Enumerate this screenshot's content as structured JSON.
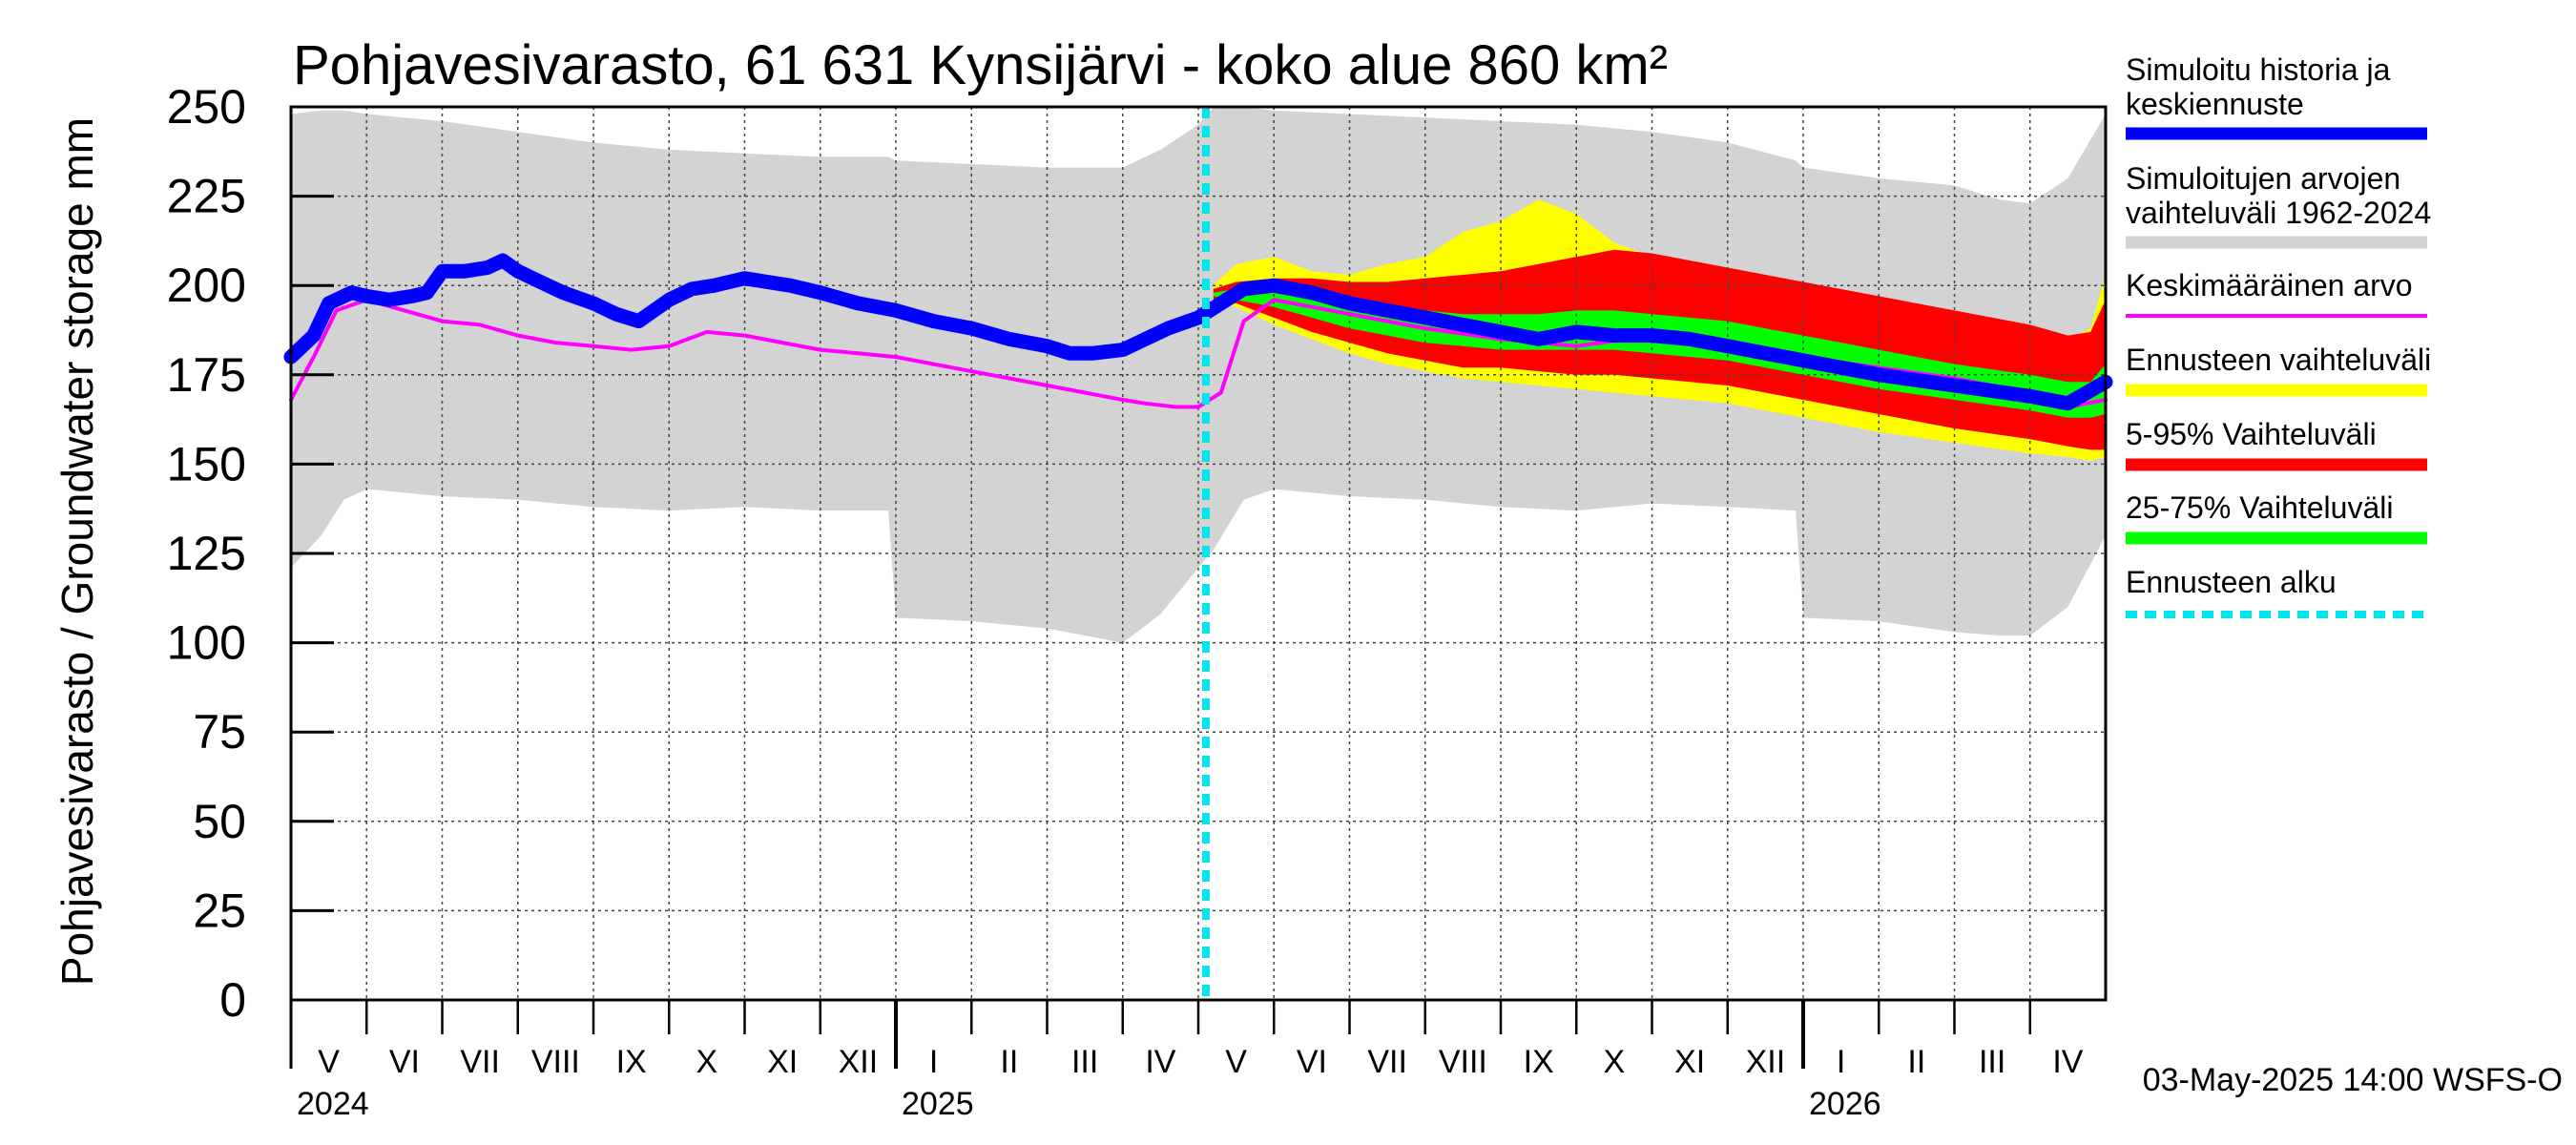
{
  "chart_data": {
    "type": "line",
    "title": "Pohjavesivarasto, 61 631 Kynsijärvi - koko alue 860 km²",
    "ylabel": "Pohjavesivarasto / Groundwater storage   mm",
    "xlabel": "",
    "ylim": [
      0,
      250
    ],
    "yticks": [
      0,
      25,
      50,
      75,
      100,
      125,
      150,
      175,
      200,
      225,
      250
    ],
    "x_unit": "month index (0 = start of May 2024)",
    "xlim": [
      0,
      24
    ],
    "months": [
      "V",
      "VI",
      "VII",
      "VIII",
      "IX",
      "X",
      "XI",
      "XII",
      "I",
      "II",
      "III",
      "IV",
      "V",
      "VI",
      "VII",
      "VIII",
      "IX",
      "X",
      "XI",
      "XII",
      "I",
      "II",
      "III",
      "IV"
    ],
    "years": [
      {
        "label": "2024",
        "month_index": 0
      },
      {
        "label": "2025",
        "month_index": 8
      },
      {
        "label": "2026",
        "month_index": 20
      }
    ],
    "forecast_start": 12.1,
    "series": [
      {
        "name": "Simuloitujen arvojen vaihteluväli 1962-2024",
        "color": "#d3d3d3",
        "type": "band",
        "x": [
          0,
          0.4,
          0.7,
          1,
          2,
          3,
          4,
          5,
          6,
          7,
          7.9,
          8.0,
          9,
          10,
          11,
          11.5,
          12.0,
          12.2,
          12.6,
          13,
          14,
          15,
          16,
          17,
          18,
          19,
          19.9,
          20.0,
          21,
          22,
          22.6,
          23,
          23.5,
          24
        ],
        "upper": [
          248,
          249,
          249,
          248,
          246,
          243,
          240,
          238,
          237,
          236,
          236,
          235,
          234,
          233,
          233,
          238,
          245,
          250,
          250,
          249,
          248,
          247,
          246,
          245,
          243,
          240,
          235,
          233,
          230,
          228,
          224,
          223,
          230,
          248
        ],
        "lower": [
          121,
          130,
          140,
          143,
          141,
          140,
          138,
          137,
          138,
          137,
          137,
          107,
          106,
          104,
          100,
          108,
          121,
          126,
          140,
          143,
          141,
          140,
          138,
          137,
          139,
          138,
          137,
          107,
          106,
          103,
          102,
          102,
          110,
          130
        ]
      },
      {
        "name": "Ennusteen vaihteluväli",
        "color": "#ffff00",
        "type": "band",
        "x": [
          12.2,
          12.5,
          13,
          13.5,
          14,
          14.5,
          15,
          15.5,
          16,
          16.5,
          17,
          17.5,
          18,
          18.5,
          19,
          20,
          21,
          22,
          23,
          23.5,
          23.8,
          24
        ],
        "upper": [
          200,
          206,
          208,
          204,
          203,
          206,
          208,
          215,
          218,
          224,
          220,
          212,
          208,
          206,
          204,
          200,
          196,
          191,
          187,
          185,
          188,
          203
        ],
        "lower": [
          196,
          194,
          189,
          185,
          181,
          178,
          176,
          174,
          173,
          172,
          171,
          170,
          169,
          168,
          167,
          163,
          159,
          156,
          153,
          152,
          151,
          152
        ]
      },
      {
        "name": "5-95% Vaihteluväli",
        "color": "#ff0000",
        "type": "band",
        "x": [
          12.2,
          12.5,
          13,
          13.5,
          14,
          14.5,
          15,
          15.5,
          16,
          16.5,
          17,
          17.5,
          18,
          18.5,
          19,
          20,
          21,
          22,
          23,
          23.5,
          23.8,
          24
        ],
        "upper": [
          199,
          201,
          202,
          202,
          201,
          201,
          202,
          203,
          204,
          206,
          208,
          210,
          209,
          207,
          205,
          201,
          197,
          193,
          189,
          186,
          187,
          196
        ],
        "lower": [
          196,
          195,
          191,
          187,
          184,
          181,
          179,
          177,
          177,
          176,
          175,
          175,
          174,
          173,
          172,
          168,
          164,
          160,
          157,
          155,
          154,
          154
        ]
      },
      {
        "name": "25-75% Vaihteluväli",
        "color": "#00ff00",
        "type": "band",
        "x": [
          12.2,
          12.5,
          13,
          13.5,
          14,
          14.5,
          15,
          15.5,
          16,
          16.5,
          17,
          17.5,
          18,
          18.5,
          19,
          20,
          21,
          22,
          23,
          23.5,
          23.8,
          24
        ],
        "upper": [
          198,
          199,
          198,
          196,
          195,
          194,
          193,
          192,
          192,
          192,
          193,
          193,
          192,
          191,
          190,
          186,
          182,
          178,
          175,
          173,
          173,
          178
        ],
        "lower": [
          197,
          196,
          194,
          191,
          188,
          186,
          184,
          183,
          182,
          182,
          182,
          182,
          181,
          180,
          179,
          175,
          171,
          168,
          165,
          163,
          163,
          164
        ]
      },
      {
        "name": "Keskimääräinen arvo",
        "color": "#ff00ff",
        "type": "line",
        "x": [
          0,
          0.3,
          0.6,
          1.0,
          1.5,
          2,
          2.5,
          3,
          3.5,
          4,
          4.5,
          5,
          5.5,
          6,
          6.5,
          7,
          7.5,
          8,
          8.5,
          9,
          9.5,
          10,
          10.5,
          11,
          11.3,
          11.7,
          12.0,
          12.3,
          12.6,
          13,
          14,
          15,
          16,
          17,
          18,
          19,
          20,
          21,
          22,
          23,
          23.5,
          24
        ],
        "y": [
          168,
          180,
          193,
          196,
          193,
          190,
          189,
          186,
          184,
          183,
          182,
          183,
          187,
          186,
          184,
          182,
          181,
          180,
          178,
          176,
          174,
          172,
          170,
          168,
          167,
          166,
          166,
          170,
          190,
          196,
          192,
          188,
          185,
          183,
          186,
          184,
          180,
          177,
          174,
          170,
          166,
          168
        ]
      },
      {
        "name": "Simuloitu historia ja keskiennuste",
        "color": "#0000ff",
        "type": "line",
        "x": [
          0,
          0.3,
          0.5,
          0.8,
          1,
          1.3,
          1.6,
          1.8,
          2,
          2.3,
          2.6,
          2.8,
          3,
          3.3,
          3.6,
          4,
          4.3,
          4.6,
          5,
          5.3,
          5.6,
          6,
          6.3,
          6.6,
          7,
          7.5,
          8,
          8.5,
          9,
          9.5,
          10,
          10.3,
          10.6,
          11,
          11.3,
          11.6,
          12.0,
          12.3,
          12.6,
          13,
          13.5,
          14,
          15,
          16,
          16.5,
          17,
          17.5,
          18,
          18.5,
          19,
          20,
          21,
          22,
          23,
          23.5,
          24
        ],
        "y": [
          180,
          186,
          195,
          198,
          197,
          196,
          197,
          198,
          204,
          204,
          205,
          207,
          204,
          201,
          198,
          195,
          192,
          190,
          196,
          199,
          200,
          202,
          201,
          200,
          198,
          195,
          193,
          190,
          188,
          185,
          183,
          181,
          181,
          182,
          185,
          188,
          191,
          195,
          199,
          200,
          198,
          195,
          191,
          187,
          185,
          187,
          186,
          186,
          185,
          183,
          179,
          175,
          172,
          169,
          167,
          173
        ]
      }
    ]
  },
  "legend": [
    {
      "label": "Simuloitu historia ja keskiennuste",
      "color": "#0000ff",
      "style": "solid"
    },
    {
      "label": "Simuloitujen arvojen vaihteluväli 1962-2024",
      "color": "#d3d3d3",
      "style": "solid"
    },
    {
      "label": "Keskimääräinen arvo",
      "color": "#ff00ff",
      "style": "thin"
    },
    {
      "label": "Ennusteen vaihteluväli",
      "color": "#ffff00",
      "style": "solid"
    },
    {
      "label": "5-95% Vaihteluväli",
      "color": "#ff0000",
      "style": "solid"
    },
    {
      "label": "25-75% Vaihteluväli",
      "color": "#00ff00",
      "style": "solid"
    },
    {
      "label": "Ennusteen alku",
      "color": "#00e5ee",
      "style": "dashed"
    }
  ],
  "footer": "03-May-2025 14:00 WSFS-O"
}
